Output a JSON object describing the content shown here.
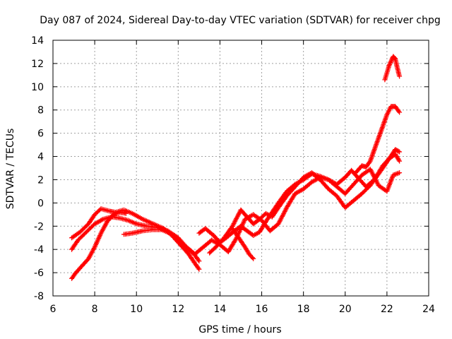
{
  "chart_data": {
    "type": "scatter",
    "title": "Day 087 of 2024, Sidereal Day-to-day VTEC variation (SDTVAR) for receiver chpg",
    "xlabel": "GPS time / hours",
    "ylabel": "SDTVAR / TECUs",
    "xlim": [
      6,
      24
    ],
    "ylim": [
      -8,
      14
    ],
    "xticks": [
      6,
      8,
      10,
      12,
      14,
      16,
      18,
      20,
      22,
      24
    ],
    "yticks": [
      -8,
      -6,
      -4,
      -2,
      0,
      2,
      4,
      6,
      8,
      10,
      12,
      14
    ],
    "grid": true,
    "marker": "plus",
    "color": "#ff0000",
    "series": [
      {
        "name": "track-1",
        "x": [
          6.9,
          7.3,
          7.7,
          8.0,
          8.3,
          8.7,
          9.0,
          9.4,
          9.8,
          10.3,
          10.8,
          11.3,
          11.7,
          12.1,
          12.5,
          12.8,
          13.0
        ],
        "y": [
          -3.0,
          -2.5,
          -1.8,
          -1.0,
          -0.5,
          -0.7,
          -0.8,
          -0.6,
          -0.9,
          -1.4,
          -1.8,
          -2.2,
          -2.8,
          -3.6,
          -4.4,
          -5.2,
          -5.7
        ]
      },
      {
        "name": "track-2",
        "x": [
          6.9,
          7.2,
          7.6,
          8.0,
          8.4,
          8.8,
          9.2,
          9.6,
          10.0,
          10.5,
          11.0,
          11.5,
          12.0,
          12.4,
          12.8,
          13.0
        ],
        "y": [
          -4.0,
          -3.2,
          -2.5,
          -1.8,
          -1.4,
          -1.2,
          -1.3,
          -1.5,
          -1.8,
          -2.0,
          -2.1,
          -2.4,
          -3.0,
          -3.8,
          -4.5,
          -5.0
        ]
      },
      {
        "name": "track-3",
        "x": [
          6.9,
          7.1,
          7.4,
          7.7,
          8.0,
          8.3,
          8.6,
          8.9,
          9.2,
          9.5
        ],
        "y": [
          -6.5,
          -6.0,
          -5.4,
          -4.8,
          -3.8,
          -2.6,
          -1.6,
          -1.0,
          -0.8,
          -0.9
        ]
      },
      {
        "name": "track-4",
        "x": [
          9.4,
          9.8,
          10.3,
          10.8,
          11.2,
          11.6,
          12.0,
          12.4,
          12.8,
          13.2,
          13.6,
          14.0,
          14.4,
          14.8,
          15.2,
          15.6,
          16.0,
          16.4,
          16.8,
          17.2,
          17.6,
          18.0,
          18.4,
          18.8,
          19.2,
          19.6,
          20.0,
          20.4,
          20.8,
          21.2,
          21.6,
          22.0,
          22.3,
          22.6
        ],
        "y": [
          -2.7,
          -2.6,
          -2.4,
          -2.3,
          -2.3,
          -2.6,
          -3.2,
          -3.8,
          -4.4,
          -3.8,
          -3.2,
          -3.6,
          -4.2,
          -3.0,
          -1.4,
          -1.0,
          -1.5,
          -2.4,
          -1.8,
          -0.4,
          0.8,
          1.2,
          1.8,
          2.2,
          2.0,
          1.4,
          0.8,
          1.6,
          2.4,
          2.9,
          1.5,
          1.0,
          2.4,
          2.6
        ]
      },
      {
        "name": "track-5",
        "x": [
          13.0,
          13.3,
          13.7,
          14.0,
          14.3,
          14.7,
          15.0,
          15.3,
          15.6,
          15.9,
          16.2,
          16.5,
          16.8,
          17.2,
          17.6,
          18.0,
          18.4,
          18.8,
          19.2,
          19.6,
          20.0,
          20.3,
          20.6,
          21.0,
          21.4,
          21.8,
          22.1,
          22.4,
          22.6
        ],
        "y": [
          -2.6,
          -2.2,
          -2.8,
          -3.4,
          -3.0,
          -2.4,
          -2.0,
          -2.4,
          -2.8,
          -2.5,
          -1.6,
          -0.8,
          0.0,
          1.0,
          1.6,
          2.0,
          2.5,
          2.3,
          2.0,
          1.6,
          2.2,
          2.8,
          2.2,
          1.4,
          2.0,
          3.0,
          3.8,
          4.2,
          3.6
        ]
      },
      {
        "name": "track-6",
        "x": [
          13.5,
          13.8,
          14.2,
          14.6,
          15.0,
          15.3,
          15.6,
          15.9,
          16.2,
          16.5,
          16.8,
          17.2,
          17.6,
          18.0,
          18.4,
          18.8,
          19.2,
          19.6,
          20.0,
          20.4,
          20.8,
          21.2,
          21.5,
          21.8,
          22.1,
          22.4,
          22.6
        ],
        "y": [
          -4.3,
          -3.8,
          -3.0,
          -2.0,
          -0.6,
          -1.2,
          -1.8,
          -1.4,
          -0.9,
          -1.2,
          -0.4,
          0.6,
          1.4,
          2.2,
          2.6,
          2.0,
          1.2,
          0.6,
          -0.4,
          0.2,
          0.8,
          1.5,
          2.3,
          3.2,
          3.8,
          4.6,
          4.4
        ]
      },
      {
        "name": "track-7",
        "x": [
          14.6,
          14.9,
          15.2,
          15.4,
          15.6
        ],
        "y": [
          -2.2,
          -3.0,
          -3.8,
          -4.4,
          -4.8
        ]
      },
      {
        "name": "track-8",
        "x": [
          20.5,
          20.8,
          21.0,
          21.2,
          21.4,
          21.6,
          21.8,
          22.0,
          22.2,
          22.4,
          22.6
        ],
        "y": [
          2.6,
          3.2,
          3.1,
          3.6,
          4.6,
          5.6,
          6.6,
          7.6,
          8.3,
          8.3,
          7.8
        ]
      },
      {
        "name": "track-9",
        "x": [
          21.9,
          22.0,
          22.1,
          22.2,
          22.3,
          22.4,
          22.5,
          22.6
        ],
        "y": [
          10.6,
          11.2,
          11.8,
          12.2,
          12.6,
          12.4,
          11.6,
          10.9
        ]
      }
    ]
  }
}
